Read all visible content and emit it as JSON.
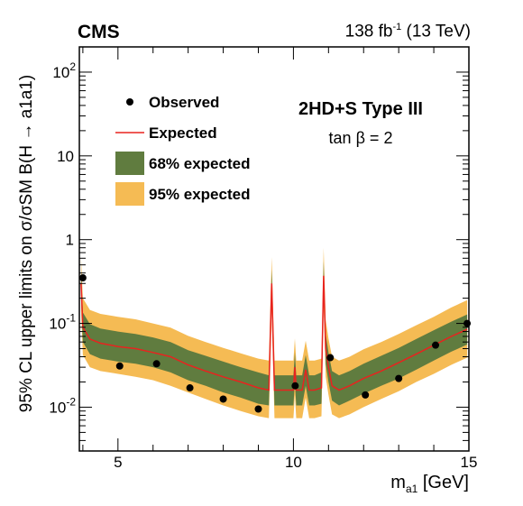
{
  "header": {
    "experiment": "CMS",
    "luminosity": "138 fb",
    "lumi_exponent": "-1",
    "energy": " (13 TeV)"
  },
  "annotation": {
    "model": "2HD+S Type III",
    "parameter": "tan β = 2"
  },
  "axes": {
    "xlabel_main": "m",
    "xlabel_sub": "a1",
    "xlabel_unit": " [GeV]",
    "ylabel": "95% CL upper limits on σ/σSM B(H → a1a1)"
  },
  "colors": {
    "band95": "#f5bb54",
    "band68": "#607c3f",
    "expected": "#e8231f",
    "observed": "#000000"
  },
  "chart_data": {
    "type": "line",
    "title": "",
    "xlabel": "m_a1 [GeV]",
    "ylabel": "95% CL upper limits on σ/σSM B(H → a1a1)",
    "xlim": [
      3.9,
      15.0
    ],
    "ylim": [
      0.003,
      200
    ],
    "yscale": "log",
    "xticks": [
      5,
      10,
      15
    ],
    "yticks": [
      0.01,
      0.1,
      1,
      10,
      100
    ],
    "ytick_labels": [
      [
        "10",
        "-2"
      ],
      [
        "10",
        "-1"
      ],
      [
        "1",
        ""
      ],
      [
        "10",
        ""
      ],
      [
        "10",
        "2"
      ]
    ],
    "grid": false,
    "legend_position": "top-left",
    "legend": [
      {
        "label": "Observed",
        "kind": "marker"
      },
      {
        "label": "Expected",
        "kind": "line"
      },
      {
        "label": "68% expected",
        "kind": "band68"
      },
      {
        "label": "95% expected",
        "kind": "band95"
      }
    ],
    "expected": {
      "x": [
        3.95,
        4.0,
        4.2,
        4.5,
        5.0,
        5.5,
        6.0,
        6.5,
        7.0,
        7.5,
        8.0,
        8.5,
        9.0,
        9.3,
        9.38,
        9.46,
        9.55,
        9.7,
        10.0,
        10.04,
        10.08,
        10.25,
        10.35,
        10.45,
        10.6,
        10.8,
        10.86,
        10.92,
        11.0,
        11.1,
        11.3,
        11.6,
        12.0,
        12.5,
        13.0,
        13.5,
        14.0,
        14.5,
        14.95
      ],
      "y": [
        0.3,
        0.09,
        0.065,
        0.058,
        0.053,
        0.05,
        0.045,
        0.04,
        0.032,
        0.027,
        0.023,
        0.02,
        0.017,
        0.016,
        0.3,
        0.016,
        0.016,
        0.016,
        0.016,
        0.03,
        0.016,
        0.016,
        0.028,
        0.016,
        0.016,
        0.017,
        0.37,
        0.05,
        0.03,
        0.018,
        0.016,
        0.018,
        0.022,
        0.027,
        0.034,
        0.043,
        0.055,
        0.07,
        0.085
      ]
    },
    "band68": {
      "x": [
        3.95,
        4.0,
        4.2,
        4.5,
        5.0,
        5.5,
        6.0,
        6.5,
        7.0,
        7.5,
        8.0,
        8.5,
        9.0,
        9.3,
        9.38,
        9.46,
        9.55,
        9.7,
        10.0,
        10.04,
        10.08,
        10.25,
        10.35,
        10.45,
        10.6,
        10.8,
        10.86,
        10.92,
        11.0,
        11.1,
        11.3,
        11.6,
        12.0,
        12.5,
        13.0,
        13.5,
        14.0,
        14.5,
        14.95
      ],
      "lower": [
        0.2,
        0.06,
        0.043,
        0.038,
        0.035,
        0.033,
        0.03,
        0.026,
        0.021,
        0.018,
        0.015,
        0.013,
        0.011,
        0.0105,
        0.2,
        0.0105,
        0.0105,
        0.0105,
        0.0105,
        0.02,
        0.0105,
        0.0105,
        0.018,
        0.0105,
        0.0105,
        0.011,
        0.25,
        0.033,
        0.02,
        0.012,
        0.0105,
        0.012,
        0.0145,
        0.018,
        0.022,
        0.028,
        0.036,
        0.046,
        0.056
      ],
      "upper": [
        0.42,
        0.135,
        0.098,
        0.087,
        0.08,
        0.075,
        0.068,
        0.06,
        0.048,
        0.041,
        0.035,
        0.03,
        0.026,
        0.024,
        0.44,
        0.024,
        0.024,
        0.024,
        0.024,
        0.045,
        0.024,
        0.024,
        0.042,
        0.024,
        0.024,
        0.026,
        0.55,
        0.075,
        0.045,
        0.027,
        0.024,
        0.027,
        0.033,
        0.041,
        0.051,
        0.065,
        0.083,
        0.105,
        0.128
      ]
    },
    "band95": {
      "x": [
        3.95,
        4.0,
        4.2,
        4.5,
        5.0,
        5.5,
        6.0,
        6.5,
        7.0,
        7.5,
        8.0,
        8.5,
        9.0,
        9.3,
        9.38,
        9.46,
        9.55,
        9.7,
        10.0,
        10.04,
        10.08,
        10.25,
        10.35,
        10.45,
        10.6,
        10.8,
        10.86,
        10.92,
        11.0,
        11.1,
        11.3,
        11.6,
        12.0,
        12.5,
        13.0,
        13.5,
        14.0,
        14.5,
        14.95
      ],
      "lower": [
        0.14,
        0.042,
        0.03,
        0.027,
        0.025,
        0.023,
        0.021,
        0.018,
        0.015,
        0.0125,
        0.0105,
        0.009,
        0.0078,
        0.0074,
        0.14,
        0.0074,
        0.0074,
        0.0074,
        0.0074,
        0.014,
        0.0074,
        0.0074,
        0.013,
        0.0074,
        0.0074,
        0.0078,
        0.17,
        0.023,
        0.014,
        0.0082,
        0.0074,
        0.0082,
        0.01,
        0.0125,
        0.0155,
        0.02,
        0.025,
        0.032,
        0.039
      ],
      "upper": [
        0.6,
        0.2,
        0.145,
        0.13,
        0.12,
        0.112,
        0.1,
        0.089,
        0.071,
        0.06,
        0.051,
        0.044,
        0.038,
        0.036,
        0.62,
        0.036,
        0.036,
        0.036,
        0.036,
        0.066,
        0.036,
        0.036,
        0.062,
        0.036,
        0.036,
        0.038,
        0.8,
        0.11,
        0.066,
        0.04,
        0.036,
        0.04,
        0.049,
        0.06,
        0.075,
        0.095,
        0.12,
        0.155,
        0.19
      ]
    },
    "observed": {
      "x": [
        4.0,
        5.05,
        6.1,
        7.05,
        8.0,
        9.0,
        10.05,
        11.05,
        12.05,
        13.0,
        14.05,
        14.95
      ],
      "y": [
        0.35,
        0.031,
        0.033,
        0.017,
        0.0125,
        0.0095,
        0.018,
        0.039,
        0.014,
        0.022,
        0.055,
        0.1
      ]
    }
  }
}
